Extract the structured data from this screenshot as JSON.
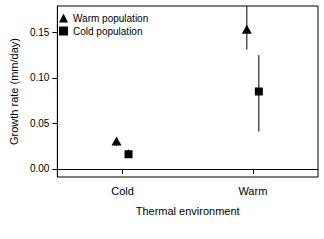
{
  "chart_data": {
    "type": "scatter",
    "x_label": "Thermal environment",
    "y_label": "Growth rate (mm/day)",
    "categories": [
      "Cold",
      "Warm"
    ],
    "series": [
      {
        "name": "Warm population",
        "color": "#000000",
        "marker": "triangle",
        "values": [
          0.03,
          0.153
        ],
        "error_low": [
          0.025,
          0.131
        ],
        "error_high": [
          0.034,
          0.182
        ]
      },
      {
        "name": "Cold population",
        "color": "#000000",
        "marker": "square",
        "values": [
          0.016,
          0.085
        ],
        "error_low": [
          0.012,
          0.041
        ],
        "error_high": [
          0.021,
          0.125
        ]
      }
    ],
    "ylim": [
      -0.009,
      0.179
    ],
    "yticks": [
      {
        "value": 0,
        "label": "0.00"
      },
      {
        "value": 0.05,
        "label": "0.05"
      },
      {
        "value": 0.1,
        "label": "0.10"
      },
      {
        "value": 0.15,
        "label": "0.15"
      }
    ],
    "grid": false,
    "legend": "upper left"
  }
}
